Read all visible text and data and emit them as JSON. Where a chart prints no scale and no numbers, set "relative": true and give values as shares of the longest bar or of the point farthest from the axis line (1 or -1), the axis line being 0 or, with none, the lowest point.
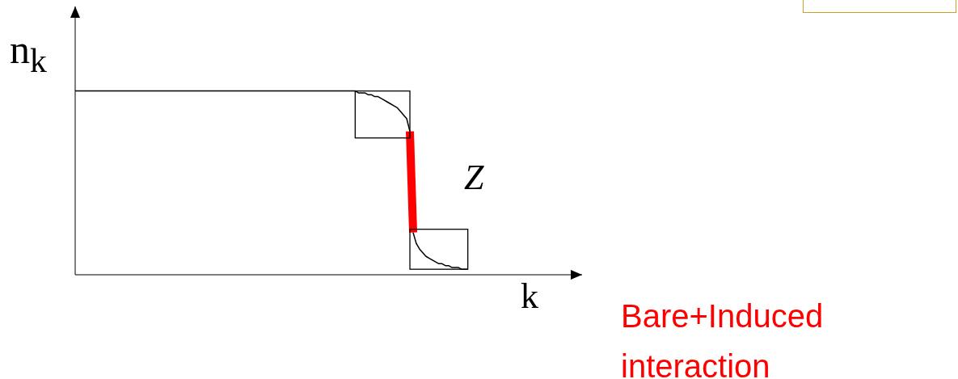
{
  "chart_data": {
    "type": "line",
    "relative": true,
    "xlabel": "k",
    "ylabel": "n$_{k}$",
    "annotations": [
      "Z",
      "Bare+Induced interaction"
    ],
    "categories": [
      null,
      null,
      null,
      null,
      null,
      null,
      null,
      null,
      null,
      null,
      null,
      null,
      null,
      null,
      null,
      null,
      null,
      null,
      null,
      null,
      null,
      null,
      null,
      null,
      null,
      null,
      null,
      null,
      null,
      null,
      null,
      null,
      null,
      null,
      null,
      null,
      null,
      null,
      null,
      null,
      null,
      null,
      null,
      null,
      null,
      null,
      null,
      null,
      null,
      null,
      null,
      null,
      null,
      null,
      null,
      null,
      null,
      null,
      null,
      null,
      null,
      null,
      null,
      null,
      null,
      null,
      null,
      null,
      null,
      null,
      null,
      null,
      null,
      null,
      null,
      null,
      null,
      null,
      null,
      null,
      null,
      null,
      null,
      null,
      null,
      null,
      null,
      null,
      null,
      null,
      null,
      null,
      null,
      null,
      null,
      null,
      null,
      null,
      null,
      null,
      null,
      null,
      null,
      null,
      null,
      null,
      null,
      null,
      null,
      null,
      null,
      null,
      null,
      null,
      null,
      null,
      null,
      null,
      null,
      null,
      null,
      null,
      null,
      null,
      null,
      null,
      null,
      null,
      null,
      null,
      null,
      null,
      null,
      null,
      null,
      null,
      null,
      null,
      null,
      null,
      null,
      null,
      null,
      null,
      null,
      null,
      null,
      null,
      null,
      null,
      null,
      null,
      null,
      null,
      null,
      null,
      null,
      null
    ],
    "series": [
      {
        "color": "#000000",
        "values": [
          1,
          1,
          1,
          1,
          1,
          1,
          1,
          1,
          1,
          1,
          1,
          1,
          1,
          1,
          1,
          1,
          1,
          1,
          1,
          1,
          1,
          1,
          1,
          1,
          1,
          1,
          1,
          1,
          1,
          1,
          1,
          1,
          1,
          1,
          1,
          1,
          1,
          1,
          1,
          1,
          1,
          1,
          1,
          1,
          1,
          1,
          1,
          1,
          1,
          1,
          1,
          1,
          1,
          1,
          1,
          1,
          1,
          1,
          1,
          1,
          1,
          1,
          1,
          1,
          1,
          1,
          1,
          1,
          1,
          1,
          1,
          1,
          1,
          1,
          1,
          1,
          1,
          1,
          1,
          1,
          1,
          1,
          1,
          1,
          1,
          1,
          1,
          1,
          0.99,
          0.99,
          0.99,
          0.98,
          0.98,
          0.97,
          0.97,
          0.96,
          0.95,
          0.94,
          0.93,
          0.92,
          0.91,
          0.89,
          0.87,
          0.85,
          0.78,
          null,
          null,
          null,
          null,
          null,
          null,
          null,
          null,
          null,
          null,
          null,
          null,
          null,
          null,
          null,
          null,
          null,
          null,
          null,
          null,
          null,
          null,
          null,
          null,
          null,
          null,
          null,
          null,
          null,
          null,
          null,
          null,
          null,
          null,
          null,
          null,
          null,
          null,
          null,
          null,
          null,
          null,
          null,
          null,
          null,
          null,
          null,
          null,
          null,
          null,
          null,
          null,
          null
        ]
      },
      {
        "color": "#ff0000",
        "values": [
          null,
          null,
          null,
          null,
          null,
          null,
          null,
          null,
          null,
          null,
          null,
          null,
          null,
          null,
          null,
          null,
          null,
          null,
          null,
          null,
          null,
          null,
          null,
          null,
          null,
          null,
          null,
          null,
          null,
          null,
          null,
          null,
          null,
          null,
          null,
          null,
          null,
          null,
          null,
          null,
          null,
          null,
          null,
          null,
          null,
          null,
          null,
          null,
          null,
          null,
          null,
          null,
          null,
          null,
          null,
          null,
          null,
          null,
          null,
          null,
          null,
          null,
          null,
          null,
          null,
          null,
          null,
          null,
          null,
          null,
          null,
          null,
          null,
          null,
          null,
          null,
          null,
          null,
          null,
          null,
          null,
          null,
          null,
          null,
          null,
          null,
          null,
          null,
          null,
          null,
          null,
          null,
          null,
          null,
          null,
          null,
          null,
          null,
          null,
          null,
          null,
          null,
          null,
          null,
          0.78,
          0.23,
          null,
          null,
          null,
          null,
          null,
          null,
          null,
          null,
          null,
          null,
          null,
          null,
          null,
          null,
          null,
          null,
          null,
          null,
          null,
          null,
          null,
          null,
          null,
          null,
          null,
          null,
          null,
          null,
          null,
          null,
          null,
          null,
          null,
          null,
          null,
          null,
          null,
          null,
          null,
          null,
          null,
          null,
          null,
          null,
          null,
          null,
          null,
          null,
          null,
          null,
          null,
          null
        ]
      },
      {
        "color": "#000000",
        "values": [
          null,
          null,
          null,
          null,
          null,
          null,
          null,
          null,
          null,
          null,
          null,
          null,
          null,
          null,
          null,
          null,
          null,
          null,
          null,
          null,
          null,
          null,
          null,
          null,
          null,
          null,
          null,
          null,
          null,
          null,
          null,
          null,
          null,
          null,
          null,
          null,
          null,
          null,
          null,
          null,
          null,
          null,
          null,
          null,
          null,
          null,
          null,
          null,
          null,
          null,
          null,
          null,
          null,
          null,
          null,
          null,
          null,
          null,
          null,
          null,
          null,
          null,
          null,
          null,
          null,
          null,
          null,
          null,
          null,
          null,
          null,
          null,
          null,
          null,
          null,
          null,
          null,
          null,
          null,
          null,
          null,
          null,
          null,
          null,
          null,
          null,
          null,
          null,
          null,
          null,
          null,
          null,
          null,
          null,
          null,
          null,
          null,
          null,
          null,
          null,
          null,
          null,
          null,
          null,
          null,
          0.23,
          0.17,
          0.14,
          0.12,
          0.1,
          0.09,
          0.08,
          0.07,
          0.06,
          0.06,
          0.05,
          0.05,
          0.04,
          0.04,
          0.04,
          0.03,
          0.03,
          0.03,
          null,
          null,
          null,
          null,
          null,
          null,
          null,
          null,
          null,
          null,
          null,
          null,
          null,
          null,
          null,
          null,
          null,
          null,
          null,
          null,
          null,
          null,
          null,
          null,
          null,
          null,
          null,
          null,
          null,
          null,
          null,
          null,
          null,
          null,
          null
        ]
      }
    ]
  }
}
